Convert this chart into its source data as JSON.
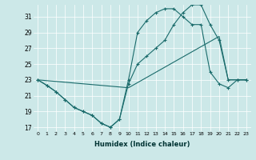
{
  "xlabel": "Humidex (Indice chaleur)",
  "xlim": [
    -0.5,
    23.5
  ],
  "ylim": [
    16.5,
    32.5
  ],
  "yticks": [
    17,
    19,
    21,
    23,
    25,
    27,
    29,
    31
  ],
  "xticks": [
    0,
    1,
    2,
    3,
    4,
    5,
    6,
    7,
    8,
    9,
    10,
    11,
    12,
    13,
    14,
    15,
    16,
    17,
    18,
    19,
    20,
    21,
    22,
    23
  ],
  "bg_color": "#cce8e8",
  "line_color": "#1a6b6b",
  "line1_x": [
    0,
    1,
    2,
    3,
    4,
    5,
    6,
    7,
    8,
    9,
    10,
    11,
    12,
    13,
    14,
    15,
    16,
    17,
    18,
    19,
    20,
    21,
    22,
    23
  ],
  "line1_y": [
    23,
    22.3,
    21.5,
    20.5,
    19.5,
    19,
    18.5,
    17.5,
    17,
    18,
    22.5,
    25,
    26,
    27,
    28,
    30,
    31.5,
    32.5,
    32.5,
    30,
    28,
    23,
    23,
    23
  ],
  "line2_x": [
    0,
    1,
    2,
    3,
    4,
    5,
    6,
    7,
    8,
    9,
    10,
    11,
    12,
    13,
    14,
    15,
    16,
    17,
    18,
    19,
    20,
    21,
    22,
    23
  ],
  "line2_y": [
    23,
    22.3,
    21.5,
    20.5,
    19.5,
    19,
    18.5,
    17.5,
    17,
    18,
    23,
    29,
    30.5,
    31.5,
    32,
    32,
    31,
    30,
    30,
    24,
    22.5,
    22,
    23,
    23
  ],
  "line3_x": [
    0,
    10,
    20,
    21,
    22,
    23
  ],
  "line3_y": [
    23,
    22,
    28.5,
    23,
    23,
    23
  ]
}
